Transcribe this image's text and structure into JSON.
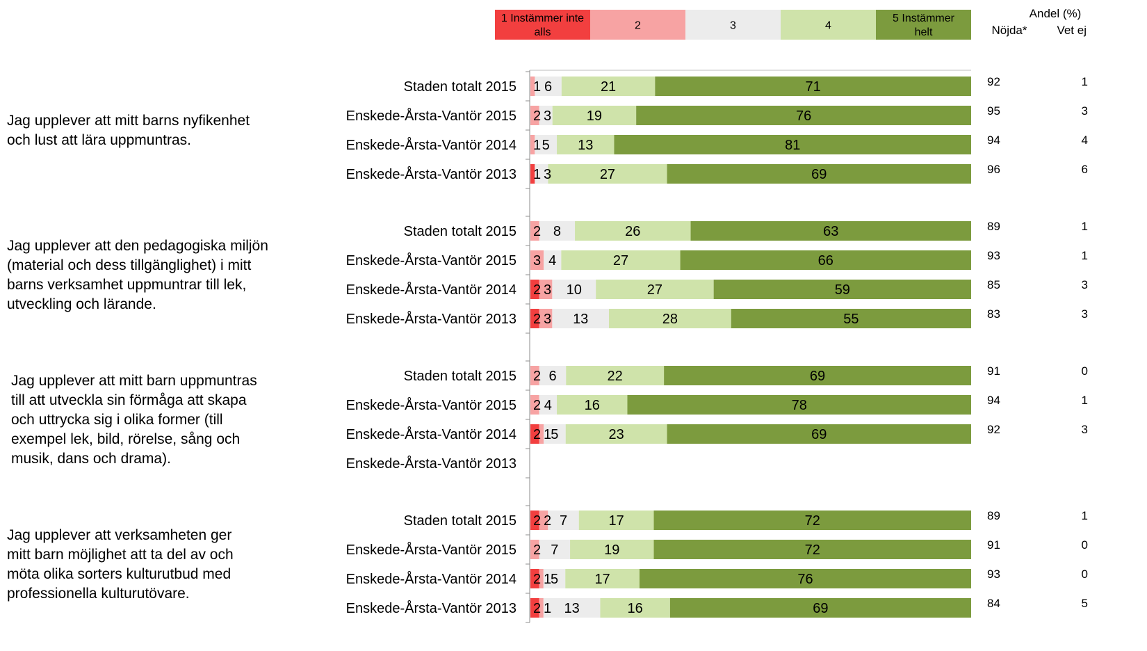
{
  "chart_data": {
    "type": "bar",
    "orientation": "horizontal",
    "stacked": true,
    "percent_scale": true,
    "legend": {
      "placement": "top",
      "items": [
        {
          "label": "1 Instämmer inte alls",
          "lines": [
            "1 Instämmer inte",
            "alls"
          ],
          "color": "#f23f3f"
        },
        {
          "label": "2",
          "lines": [
            "2"
          ],
          "color": "#f7a3a3"
        },
        {
          "label": "3",
          "lines": [
            "3"
          ],
          "color": "#ececec"
        },
        {
          "label": "4",
          "lines": [
            "4"
          ],
          "color": "#cfe3aa"
        },
        {
          "label": "5 Instämmer helt",
          "lines": [
            "5 Instämmer",
            "helt"
          ],
          "color": "#7c9b3e"
        }
      ]
    },
    "headers": {
      "group": "Andel (%)",
      "satisfied": "Nöjda*",
      "unknown": "Vet ej"
    },
    "questions": [
      {
        "lines": [
          "Jag upplever att mitt barns nyfikenhet",
          "och lust att lära uppmuntras."
        ],
        "rows": [
          {
            "label": "Staden totalt 2015",
            "values": [
              0,
              1,
              6,
              21,
              71
            ],
            "satisfied": "92",
            "unknown": "1"
          },
          {
            "label": "Enskede-Årsta-Vantör 2015",
            "values": [
              0,
              2,
              3,
              19,
              76
            ],
            "satisfied": "95",
            "unknown": "3"
          },
          {
            "label": "Enskede-Årsta-Vantör 2014",
            "values": [
              0,
              1,
              5,
              13,
              81
            ],
            "satisfied": "94",
            "unknown": "4"
          },
          {
            "label": "Enskede-Årsta-Vantör 2013",
            "values": [
              1,
              0,
              3,
              27,
              69
            ],
            "satisfied": "96",
            "unknown": "6"
          }
        ]
      },
      {
        "lines": [
          "Jag upplever att den pedagogiska miljön",
          "(material och dess tillgänglighet)  i mitt",
          "barns verksamhet uppmuntrar till lek,",
          "utveckling och lärande."
        ],
        "rows": [
          {
            "label": "Staden totalt 2015",
            "values": [
              0,
              2,
              8,
              26,
              63
            ],
            "satisfied": "89",
            "unknown": "1"
          },
          {
            "label": "Enskede-Årsta-Vantör 2015",
            "values": [
              0,
              3,
              4,
              27,
              66
            ],
            "satisfied": "93",
            "unknown": "1"
          },
          {
            "label": "Enskede-Årsta-Vantör 2014",
            "values": [
              2,
              3,
              10,
              27,
              59
            ],
            "satisfied": "85",
            "unknown": "3"
          },
          {
            "label": "Enskede-Årsta-Vantör 2013",
            "values": [
              2,
              3,
              13,
              28,
              55
            ],
            "satisfied": "83",
            "unknown": "3"
          }
        ]
      },
      {
        "lines": [
          "Jag upplever att mitt barn uppmuntras",
          "till att utveckla sin förmåga att skapa",
          "och uttrycka sig i olika former (till",
          "exempel lek, bild,  rörelse, sång och",
          "musik, dans och drama)."
        ],
        "rows": [
          {
            "label": "Staden totalt 2015",
            "values": [
              0,
              2,
              6,
              22,
              69
            ],
            "satisfied": "91",
            "unknown": "0"
          },
          {
            "label": "Enskede-Årsta-Vantör 2015",
            "values": [
              0,
              2,
              4,
              16,
              78
            ],
            "satisfied": "94",
            "unknown": "1"
          },
          {
            "label": "Enskede-Årsta-Vantör 2014",
            "values": [
              2,
              1,
              5,
              23,
              69
            ],
            "satisfied": "92",
            "unknown": "3"
          },
          {
            "label": "Enskede-Årsta-Vantör 2013",
            "values": null,
            "satisfied": "",
            "unknown": ""
          }
        ]
      },
      {
        "lines": [
          "Jag upplever att verksamheten ger",
          "mitt barn möjlighet att ta del av och",
          "möta olika sorters kulturutbud med",
          "professionella kulturutövare."
        ],
        "rows": [
          {
            "label": "Staden totalt 2015",
            "values": [
              2,
              2,
              7,
              17,
              72
            ],
            "satisfied": "89",
            "unknown": "1"
          },
          {
            "label": "Enskede-Årsta-Vantör 2015",
            "values": [
              0,
              2,
              7,
              19,
              72
            ],
            "satisfied": "91",
            "unknown": "0"
          },
          {
            "label": "Enskede-Årsta-Vantör 2014",
            "values": [
              2,
              1,
              5,
              17,
              76
            ],
            "satisfied": "93",
            "unknown": "0"
          },
          {
            "label": "Enskede-Årsta-Vantör 2013",
            "values": [
              2,
              1,
              13,
              16,
              69
            ],
            "satisfied": "84",
            "unknown": "5"
          }
        ]
      }
    ]
  }
}
